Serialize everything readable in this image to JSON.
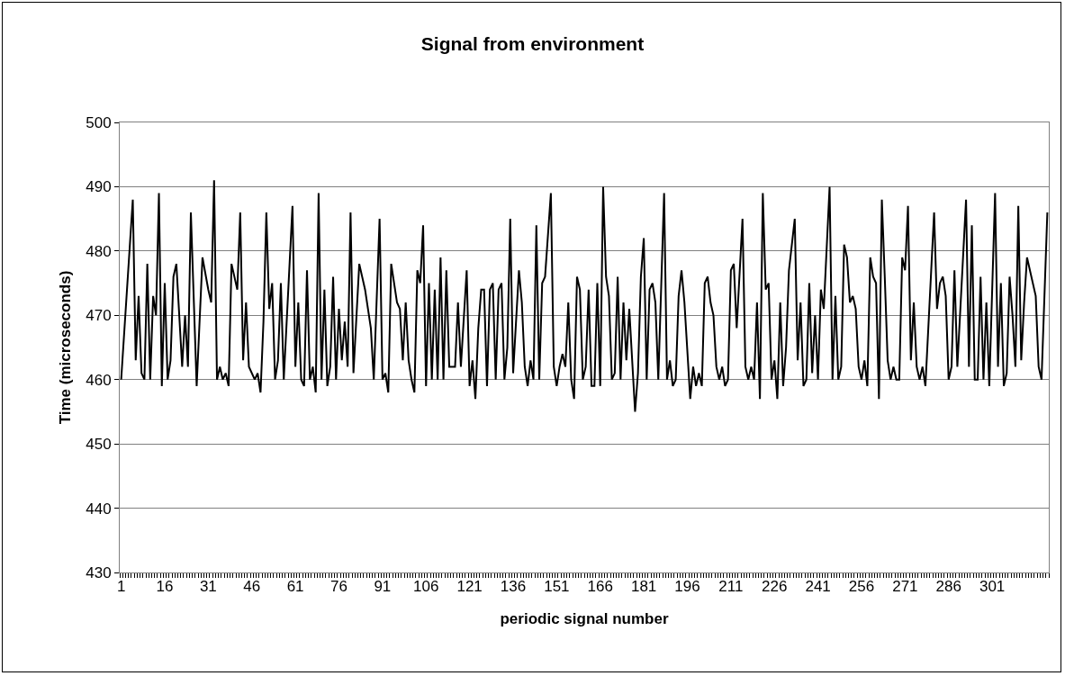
{
  "chart_data": {
    "type": "line",
    "title": "Signal from environment",
    "xlabel": "periodic signal number",
    "ylabel": "Time (microseconds)",
    "x": [
      1,
      5,
      6,
      7,
      8,
      9,
      10,
      11,
      12,
      13,
      14,
      15,
      16,
      17,
      18,
      19,
      20,
      22,
      23,
      24,
      25,
      27,
      29,
      31,
      32,
      33,
      34,
      35,
      36,
      37,
      38,
      39,
      41,
      42,
      43,
      44,
      45,
      47,
      48,
      49,
      50,
      51,
      52,
      53,
      54,
      55,
      56,
      57,
      60,
      61,
      62,
      63,
      64,
      65,
      66,
      67,
      68,
      69,
      70,
      71,
      72,
      73,
      74,
      75,
      76,
      77,
      78,
      79,
      80,
      81,
      83,
      85,
      87,
      88,
      90,
      91,
      92,
      93,
      94,
      96,
      97,
      98,
      99,
      100,
      101,
      102,
      103,
      104,
      105,
      106,
      107,
      108,
      109,
      110,
      111,
      112,
      113,
      114,
      116,
      117,
      118,
      120,
      121,
      122,
      123,
      124,
      125,
      126,
      127,
      128,
      129,
      130,
      131,
      132,
      133,
      134,
      135,
      136,
      138,
      139,
      140,
      141,
      142,
      143,
      144,
      145,
      146,
      147,
      149,
      150,
      151,
      152,
      153,
      154,
      155,
      156,
      157,
      158,
      159,
      160,
      161,
      162,
      163,
      164,
      165,
      166,
      167,
      168,
      169,
      170,
      171,
      172,
      173,
      174,
      175,
      176,
      178,
      179,
      180,
      181,
      182,
      183,
      184,
      185,
      186,
      188,
      189,
      190,
      191,
      192,
      193,
      194,
      195,
      197,
      198,
      199,
      200,
      201,
      202,
      203,
      204,
      205,
      206,
      207,
      208,
      209,
      210,
      211,
      212,
      213,
      215,
      216,
      217,
      218,
      219,
      220,
      221,
      222,
      223,
      224,
      225,
      226,
      227,
      228,
      229,
      230,
      231,
      233,
      234,
      235,
      236,
      237,
      238,
      239,
      240,
      241,
      242,
      243,
      245,
      246,
      247,
      248,
      249,
      250,
      251,
      252,
      253,
      254,
      255,
      256,
      257,
      258,
      259,
      260,
      261,
      262,
      263,
      264,
      265,
      266,
      267,
      268,
      269,
      270,
      271,
      272,
      273,
      274,
      275,
      276,
      277,
      278,
      280,
      281,
      282,
      283,
      284,
      285,
      286,
      287,
      288,
      289,
      292,
      293,
      294,
      295,
      296,
      297,
      298,
      299,
      300,
      302,
      303,
      304,
      305,
      306,
      307,
      308,
      309,
      310,
      311,
      312,
      313,
      316,
      317,
      318,
      320
    ],
    "series": [
      {
        "color": "#000000",
        "values": [
          460,
          488,
          463,
          473,
          461,
          460,
          478,
          460,
          473,
          470,
          489,
          459,
          475,
          460,
          463,
          476,
          478,
          462,
          470,
          462,
          486,
          459,
          479,
          474,
          472,
          491,
          460,
          462,
          460,
          461,
          459,
          478,
          474,
          486,
          463,
          472,
          462,
          460,
          461,
          458,
          469,
          486,
          471,
          475,
          460,
          463,
          475,
          460,
          487,
          462,
          472,
          460,
          459,
          477,
          460,
          462,
          458,
          489,
          460,
          474,
          459,
          462,
          476,
          460,
          471,
          463,
          469,
          462,
          486,
          461,
          478,
          474,
          468,
          460,
          485,
          460,
          461,
          458,
          478,
          472,
          471,
          463,
          472,
          463,
          460,
          458,
          477,
          475,
          484,
          459,
          475,
          460,
          474,
          460,
          479,
          460,
          477,
          462,
          462,
          472,
          462,
          477,
          459,
          463,
          457,
          468,
          474,
          474,
          459,
          474,
          475,
          460,
          474,
          475,
          460,
          465,
          485,
          461,
          477,
          472,
          462,
          459,
          463,
          460,
          484,
          460,
          475,
          476,
          489,
          462,
          459,
          462,
          464,
          462,
          472,
          460,
          457,
          476,
          474,
          460,
          462,
          474,
          459,
          459,
          475,
          459,
          490,
          476,
          473,
          460,
          461,
          476,
          460,
          472,
          463,
          471,
          455,
          461,
          476,
          482,
          460,
          474,
          475,
          472,
          460,
          489,
          460,
          463,
          459,
          460,
          473,
          477,
          472,
          457,
          462,
          459,
          461,
          459,
          475,
          476,
          472,
          470,
          462,
          460,
          462,
          459,
          460,
          477,
          478,
          468,
          485,
          462,
          460,
          462,
          460,
          472,
          457,
          489,
          474,
          475,
          460,
          463,
          457,
          472,
          459,
          465,
          477,
          485,
          463,
          472,
          459,
          460,
          475,
          461,
          470,
          460,
          474,
          471,
          490,
          460,
          473,
          460,
          462,
          481,
          479,
          472,
          473,
          471,
          462,
          460,
          463,
          459,
          479,
          476,
          475,
          457,
          488,
          476,
          463,
          460,
          462,
          460,
          460,
          479,
          477,
          487,
          463,
          472,
          462,
          460,
          462,
          459,
          477,
          486,
          471,
          475,
          476,
          473,
          460,
          462,
          477,
          462,
          488,
          462,
          484,
          460,
          460,
          476,
          460,
          472,
          459,
          489,
          462,
          475,
          459,
          461,
          476,
          470,
          462,
          487,
          463,
          472,
          479,
          473,
          462,
          460,
          486
        ]
      }
    ],
    "xlim": [
      0.5,
      320.5
    ],
    "xticks": [
      1,
      16,
      31,
      46,
      61,
      76,
      91,
      106,
      121,
      136,
      151,
      166,
      181,
      196,
      211,
      226,
      241,
      256,
      271,
      286,
      301
    ],
    "ylim": [
      430,
      500
    ],
    "yticks": [
      430,
      440,
      450,
      460,
      470,
      480,
      490,
      500
    ],
    "grid": "y"
  }
}
